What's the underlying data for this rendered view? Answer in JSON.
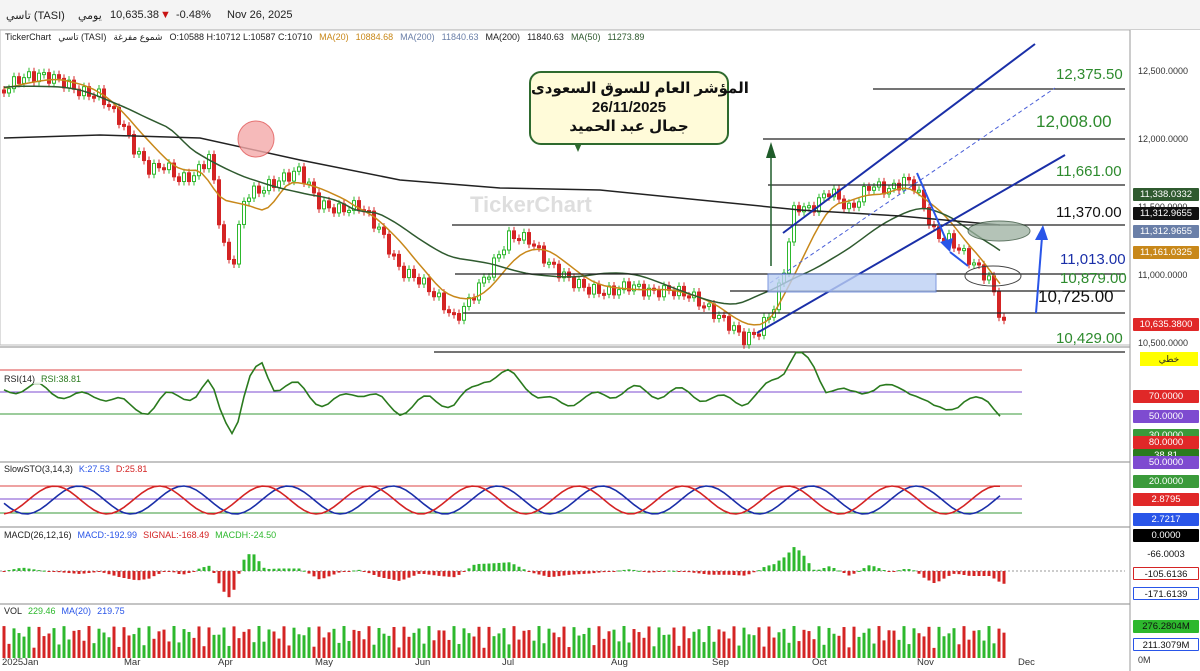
{
  "topbar": {
    "symbol": "تاسي (TASI)",
    "interval": "يومي",
    "price": "10,635.38",
    "change": "-0.48%",
    "date": "Nov 26, 2025"
  },
  "infobar": {
    "brand": "TickerChart",
    "name": "تاسي (TASI)",
    "chart_type": "شموع مفرغة",
    "ohlc": "O:10588  H:10712  L:10587  C:10710",
    "ma20_label": "MA(20)",
    "ma20_value": "10884.68",
    "ma200a_label": "MA(200)",
    "ma200a_value": "11840.63",
    "ma200b_label": "MA(200)",
    "ma200b_value": "11840.63",
    "ma50_label": "MA(50)",
    "ma50_value": "11273.89"
  },
  "callout": {
    "line1": "المؤشر العام للسوق السعودى",
    "line2": "26/11/2025",
    "line3": "جمال عبد الحميد"
  },
  "watermark": "TickerChart",
  "levels": [
    "12,375.50",
    "12,008.00",
    "11,661.00",
    "11,370.00",
    "11,013.00",
    "10,879.00",
    "10,725.00",
    "10,429.00"
  ],
  "price_axis": [
    "12,500.0000",
    "12,000.0000",
    "11,500.0000",
    "11,000.0000",
    "10,500.0000"
  ],
  "price_labels": {
    "ma50": "11,338.0332",
    "ma200": "11,312.9655",
    "ma200b": "11,312.9655",
    "ma20": "11,161.0325",
    "last": "10,635.3800"
  },
  "line_badge": "خطي",
  "rsi": {
    "title": "RSI(14)",
    "value_label": "RSI:38.81",
    "labels": [
      "70.0000",
      "50.0000",
      "30.0000",
      "38.81"
    ]
  },
  "stoch": {
    "title": "SlowSTO(3,14,3)",
    "k_label": "K:27.53",
    "d_label": "D:25.81",
    "labels": [
      "80.0000",
      "50.0000",
      "20.0000",
      "2.8795",
      "2.7217"
    ]
  },
  "macd": {
    "title": "MACD(26,12,16)",
    "macd_label": "MACD:-192.99",
    "signal_label": "SIGNAL:-168.49",
    "macdh_label": "MACDH:-24.50",
    "labels": [
      "0.0000",
      "-66.0003",
      "-105.6136",
      "-171.6139"
    ]
  },
  "vol": {
    "title": "VOL",
    "value": "229.46",
    "ma_label": "MA(20)",
    "ma_value": "219.75",
    "labels": [
      "276.2804M",
      "211.3079M",
      "0M"
    ]
  },
  "x_axis": [
    "2025Jan",
    "Mar",
    "Apr",
    "May",
    "Jun",
    "Jul",
    "Aug",
    "Sep",
    "Oct",
    "Nov",
    "Dec"
  ],
  "colors": {
    "up": "#2db82d",
    "down": "#d42424",
    "ma20": "#c8881a",
    "ma50": "#2f5a2f",
    "ma200": "#222222",
    "channel": "#1a2fa8",
    "rsi": "#2a7a1e"
  }
}
